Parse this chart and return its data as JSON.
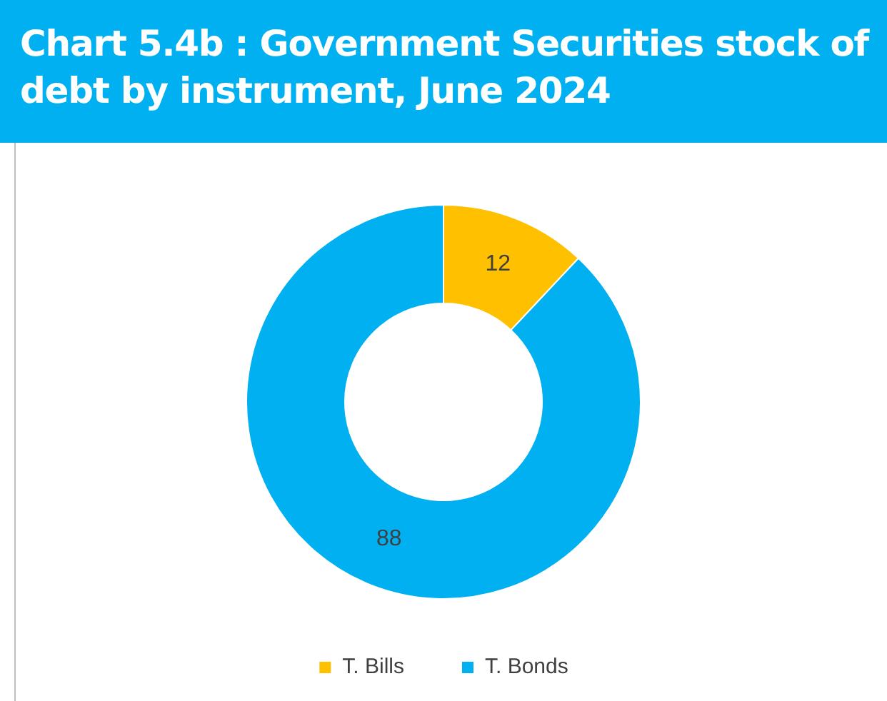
{
  "chart_data": {
    "type": "donut",
    "title": "Chart 5.4b : Government Securities stock of debt by instrument, June 2024",
    "categories": [
      "T. Bills",
      "T. Bonds"
    ],
    "values": [
      12,
      88
    ],
    "colors": [
      "#ffc000",
      "#00b0f0"
    ],
    "data_labels": true,
    "legend": "bottom"
  }
}
